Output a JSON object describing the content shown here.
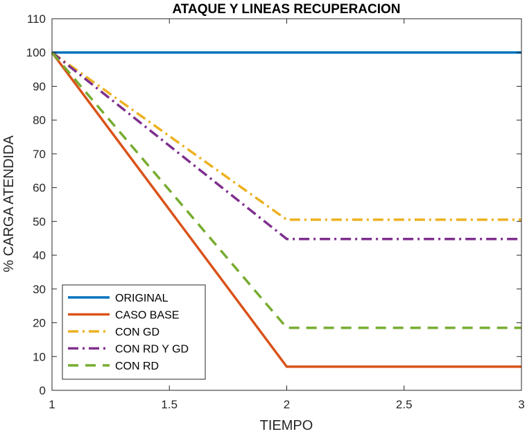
{
  "chart_data": {
    "type": "line",
    "title": "ATAQUE Y LINEAS RECUPERACION",
    "xlabel": "TIEMPO",
    "ylabel": "% CARGA ATENDIDA",
    "xlim": [
      1,
      3
    ],
    "ylim": [
      0,
      110
    ],
    "xticks": [
      "1",
      "1.5",
      "2",
      "2.5",
      "3"
    ],
    "yticks": [
      "0",
      "10",
      "20",
      "30",
      "40",
      "50",
      "60",
      "70",
      "80",
      "90",
      "100",
      "110"
    ],
    "x": [
      1,
      2,
      3
    ],
    "grid": false,
    "legend_position": "bottom-left",
    "series": [
      {
        "name": "ORIGINAL",
        "values": [
          100,
          100,
          100
        ],
        "color": "#0072BD",
        "dash": "solid"
      },
      {
        "name": "CASO BASE",
        "values": [
          100,
          7,
          7
        ],
        "color": "#D95319",
        "dash": "solid"
      },
      {
        "name": "CON GD",
        "values": [
          100,
          50.5,
          50.5
        ],
        "color": "#EDB120",
        "dash": "dashdot"
      },
      {
        "name": "CON RD Y GD",
        "values": [
          100,
          44.8,
          44.8
        ],
        "color": "#7E2F8E",
        "dash": "dashdot"
      },
      {
        "name": "CON RD",
        "values": [
          100,
          18.5,
          18.5
        ],
        "color": "#77AC30",
        "dash": "dashed"
      }
    ]
  }
}
